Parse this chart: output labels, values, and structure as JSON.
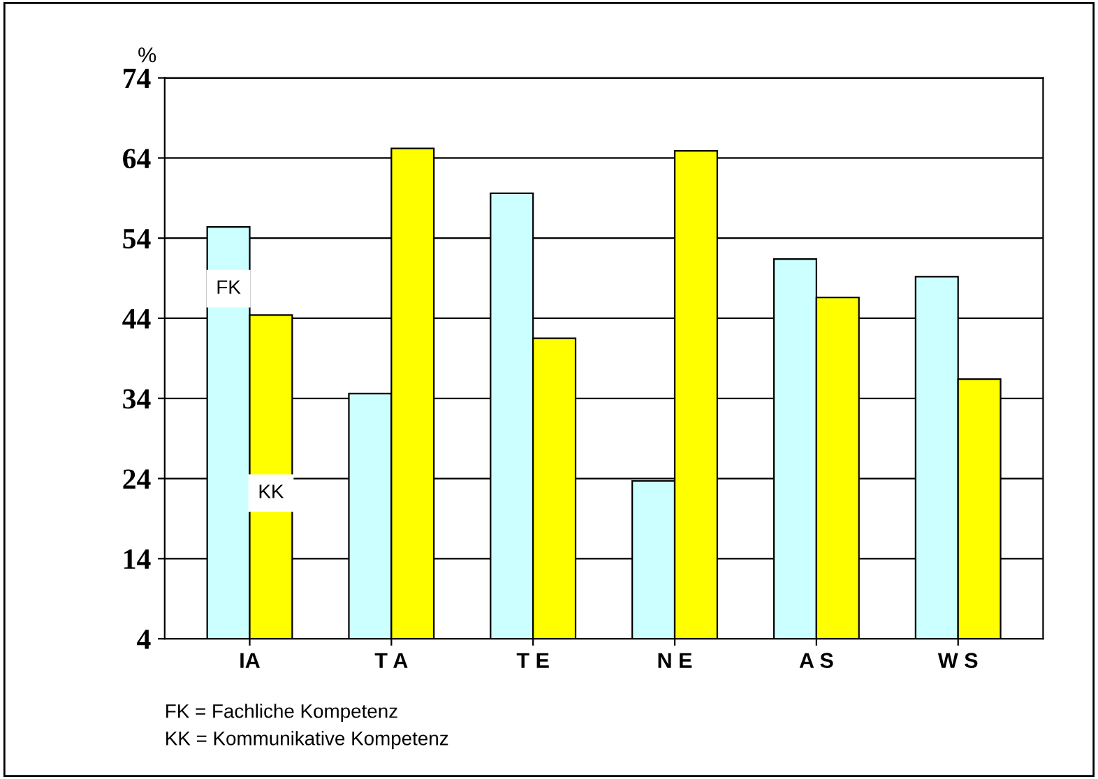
{
  "chart_data": {
    "type": "bar",
    "ylabel": "%",
    "categories": [
      "IA",
      "T A",
      "T E",
      "N E",
      "A S",
      "W S"
    ],
    "series": [
      {
        "name": "FK",
        "color": "#ccffff",
        "values": [
          55.4,
          34.6,
          59.6,
          23.7,
          51.4,
          49.2
        ]
      },
      {
        "name": "KK",
        "color": "#ffff00",
        "values": [
          44.4,
          65.2,
          41.5,
          64.9,
          46.6,
          36.4
        ]
      }
    ],
    "ylim": [
      4,
      74
    ],
    "yticks": [
      4,
      14,
      24,
      34,
      44,
      54,
      64,
      74
    ],
    "grid": "y",
    "annotations": [
      "FK = Fachliche Kompetenz",
      "KK = Kommunikative Kompetenz"
    ]
  }
}
